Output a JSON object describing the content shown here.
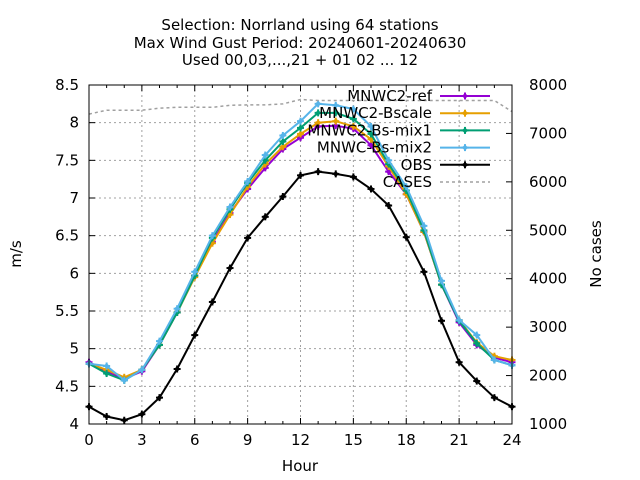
{
  "chart_data": {
    "type": "line",
    "title_lines": [
      "Selection: Norrland using    64 stations",
      "Max Wind Gust   Period: 20240601-20240630",
      "Used 00,03,...,21 + 01 02 ... 12"
    ],
    "xlabel": "Hour",
    "ylabel": "m/s",
    "y2label": "No cases",
    "xlim": [
      0,
      24
    ],
    "ylim": [
      4,
      8.5
    ],
    "y2lim": [
      1000,
      8000
    ],
    "xticks": [
      0,
      3,
      6,
      9,
      12,
      15,
      18,
      21,
      24
    ],
    "yticks": [
      "4",
      "4.5",
      "5",
      "5.5",
      "6",
      "6.5",
      "7",
      "7.5",
      "8",
      "8.5"
    ],
    "y2ticks": [
      "1000",
      "2000",
      "3000",
      "4000",
      "5000",
      "6000",
      "7000",
      "8000"
    ],
    "grid": true,
    "legend_position": "top-right",
    "x": [
      0,
      1,
      2,
      3,
      4,
      5,
      6,
      7,
      8,
      9,
      10,
      11,
      12,
      13,
      14,
      15,
      16,
      17,
      18,
      19,
      20,
      21,
      22,
      23,
      24
    ],
    "series": [
      {
        "name": "MNWC2-ref",
        "color": "#9400d3",
        "marker": "plus",
        "values": [
          4.82,
          4.7,
          4.6,
          4.7,
          5.05,
          5.48,
          5.97,
          6.42,
          6.8,
          7.12,
          7.4,
          7.65,
          7.8,
          7.95,
          7.96,
          7.92,
          7.7,
          7.35,
          7.05,
          6.55,
          5.85,
          5.35,
          5.05,
          4.88,
          4.82
        ]
      },
      {
        "name": "MNWC2-Bscale",
        "color": "#e69f00",
        "marker": "plus",
        "values": [
          4.8,
          4.72,
          4.62,
          4.72,
          5.05,
          5.48,
          5.95,
          6.4,
          6.78,
          7.15,
          7.45,
          7.68,
          7.85,
          8.0,
          8.02,
          7.95,
          7.78,
          7.42,
          7.05,
          6.55,
          5.85,
          5.38,
          5.08,
          4.9,
          4.85
        ]
      },
      {
        "name": "MNWC2-Bs-mix1",
        "color": "#009e73",
        "marker": "plus",
        "values": [
          4.8,
          4.67,
          4.58,
          4.72,
          5.05,
          5.48,
          5.97,
          6.47,
          6.85,
          7.2,
          7.5,
          7.75,
          7.93,
          8.13,
          8.13,
          8.05,
          7.85,
          7.45,
          7.1,
          6.57,
          5.85,
          5.37,
          5.07,
          4.85,
          4.78
        ]
      },
      {
        "name": "MNWC-Bs-mix2",
        "color": "#56b4e9",
        "marker": "plus",
        "values": [
          4.8,
          4.77,
          4.58,
          4.72,
          5.1,
          5.53,
          6.02,
          6.5,
          6.88,
          7.22,
          7.57,
          7.83,
          8.02,
          8.25,
          8.23,
          8.18,
          7.95,
          7.5,
          7.15,
          6.63,
          5.9,
          5.38,
          5.18,
          4.85,
          4.78
        ]
      },
      {
        "name": "OBS",
        "color": "#000000",
        "marker": "plus",
        "values": [
          4.23,
          4.1,
          4.05,
          4.13,
          4.35,
          4.73,
          5.18,
          5.62,
          6.07,
          6.47,
          6.75,
          7.02,
          7.3,
          7.35,
          7.32,
          7.28,
          7.12,
          6.9,
          6.48,
          6.02,
          5.37,
          4.82,
          4.57,
          4.35,
          4.23
        ]
      },
      {
        "name": "CASES",
        "color": "#a0a0a0",
        "marker": "none",
        "axis": "y2",
        "dashed": true,
        "values": [
          7400,
          7480,
          7480,
          7480,
          7520,
          7540,
          7540,
          7540,
          7580,
          7590,
          7590,
          7610,
          7700,
          7680,
          7680,
          7680,
          7680,
          7680,
          7680,
          7680,
          7680,
          7680,
          7680,
          7680,
          7450
        ]
      }
    ]
  }
}
